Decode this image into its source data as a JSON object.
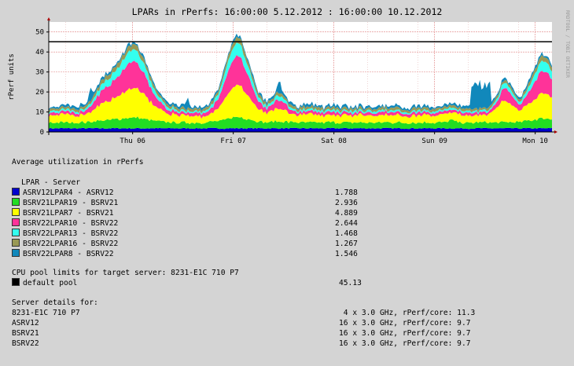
{
  "chart_data": {
    "type": "area",
    "title": "LPARs in rPerfs: 16:00:00 5.12.2012 : 16:00:00 10.12.2012",
    "ylabel": "rPerf units",
    "side_text": "RRDTOOL / TOBI OETIKER",
    "ylim": [
      0,
      55
    ],
    "yticks": [
      0,
      10,
      20,
      30,
      40,
      50
    ],
    "xlim_hours": [
      0,
      120
    ],
    "xticks": [
      {
        "label": "Thu 06",
        "hour": 20
      },
      {
        "label": "Fri 07",
        "hour": 44
      },
      {
        "label": "Sat 08",
        "hour": 68
      },
      {
        "label": "Sun 09",
        "hour": 92
      },
      {
        "label": "Mon 10",
        "hour": 116
      }
    ],
    "limit_line": {
      "name": "default pool",
      "value": 45.13,
      "color": "#000000"
    },
    "series": [
      {
        "name": "ASRV12LPAR4 - ASRV12",
        "color": "#0000cc",
        "avg": 1.788
      },
      {
        "name": "BSRV21LPAR19 - BSRV21",
        "color": "#22dd22",
        "avg": 2.936
      },
      {
        "name": "BSRV21LPAR7 - BSRV21",
        "color": "#ffff00",
        "avg": 4.889
      },
      {
        "name": "BSRV22LPAR10 - BSRV22",
        "color": "#ff3399",
        "avg": 2.644
      },
      {
        "name": "BSRV22LPAR13 - BSRV22",
        "color": "#33ffee",
        "avg": 1.468
      },
      {
        "name": "BSRV22LPAR16 - BSRV22",
        "color": "#999955",
        "avg": 1.267
      },
      {
        "name": "BSRV22LPAR8 - BSRV22",
        "color": "#1188bb",
        "avg": 1.546
      }
    ]
  },
  "summary": {
    "heading": "Average utilization in rPerfs",
    "legend_header": "LPAR - Server"
  },
  "pool": {
    "heading": "CPU pool limits for target server: 8231-E1C 710 P7",
    "name": "default pool",
    "value": "45.13",
    "color": "#000000"
  },
  "server_details": {
    "heading": "Server details for:",
    "rows": [
      {
        "name": "8231-E1C 710 P7",
        "spec": " 4 x 3.0 GHz, rPerf/core: 11.3"
      },
      {
        "name": "ASRV12",
        "spec": "16 x 3.0 GHz, rPerf/core: 9.7"
      },
      {
        "name": "BSRV21",
        "spec": "16 x 3.0 GHz, rPerf/core: 9.7"
      },
      {
        "name": "BSRV22",
        "spec": "16 x 3.0 GHz, rPerf/core: 9.7"
      }
    ]
  }
}
